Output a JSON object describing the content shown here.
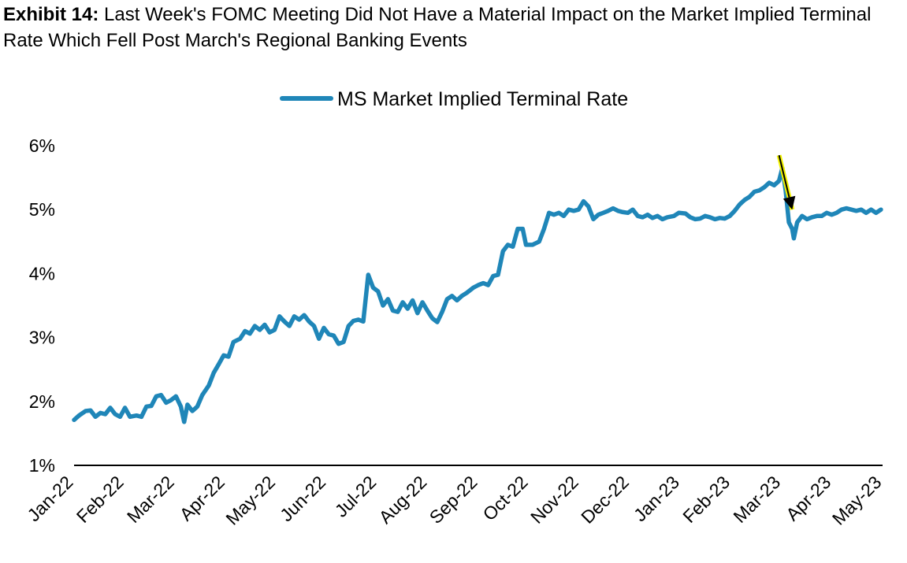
{
  "title": {
    "lead": "Exhibit 14:",
    "text": "Last Week's FOMC Meeting Did Not Have a Material Impact on the Market Implied Terminal Rate Which Fell Post March's Regional Banking Events"
  },
  "colors": {
    "series": "#1f86b8",
    "arrow_highlight": "#f2f200",
    "arrow": "#000000",
    "axis": "#000000"
  },
  "chart_data": {
    "type": "line",
    "legend_position": "top-center",
    "grid": false,
    "x_ticks": [
      "Jan-22",
      "Feb-22",
      "Mar-22",
      "Apr-22",
      "May-22",
      "Jun-22",
      "Jul-22",
      "Aug-22",
      "Sep-22",
      "Oct-22",
      "Nov-22",
      "Dec-22",
      "Jan-23",
      "Feb-23",
      "Mar-23",
      "Apr-23",
      "May-23"
    ],
    "y_ticks": [
      "6%",
      "5%",
      "4%",
      "3%",
      "2%",
      "1%"
    ],
    "ylim": [
      1,
      6
    ],
    "xlim": [
      "2022-01-01",
      "2023-05-08"
    ],
    "annotation": {
      "type": "arrow",
      "from": [
        "2023-03-06",
        5.85
      ],
      "to": [
        "2023-03-14",
        5.0
      ]
    },
    "series": [
      {
        "name": "MS Market Implied Terminal Rate",
        "points": [
          [
            "2022-01-01",
            1.71
          ],
          [
            "2022-01-04",
            1.78
          ],
          [
            "2022-01-08",
            1.85
          ],
          [
            "2022-01-11",
            1.86
          ],
          [
            "2022-01-14",
            1.76
          ],
          [
            "2022-01-17",
            1.82
          ],
          [
            "2022-01-20",
            1.8
          ],
          [
            "2022-01-23",
            1.9
          ],
          [
            "2022-01-26",
            1.8
          ],
          [
            "2022-01-29",
            1.76
          ],
          [
            "2022-02-01",
            1.9
          ],
          [
            "2022-02-04",
            1.76
          ],
          [
            "2022-02-08",
            1.78
          ],
          [
            "2022-02-11",
            1.76
          ],
          [
            "2022-02-14",
            1.92
          ],
          [
            "2022-02-17",
            1.93
          ],
          [
            "2022-02-20",
            2.08
          ],
          [
            "2022-02-23",
            2.1
          ],
          [
            "2022-02-26",
            1.98
          ],
          [
            "2022-03-01",
            2.02
          ],
          [
            "2022-03-04",
            2.08
          ],
          [
            "2022-03-07",
            1.92
          ],
          [
            "2022-03-09",
            1.68
          ],
          [
            "2022-03-11",
            1.95
          ],
          [
            "2022-03-14",
            1.85
          ],
          [
            "2022-03-17",
            1.92
          ],
          [
            "2022-03-20",
            2.1
          ],
          [
            "2022-03-24",
            2.25
          ],
          [
            "2022-03-27",
            2.45
          ],
          [
            "2022-03-30",
            2.58
          ],
          [
            "2022-04-02",
            2.72
          ],
          [
            "2022-04-05",
            2.7
          ],
          [
            "2022-04-08",
            2.93
          ],
          [
            "2022-04-12",
            2.98
          ],
          [
            "2022-04-15",
            3.1
          ],
          [
            "2022-04-18",
            3.06
          ],
          [
            "2022-04-21",
            3.18
          ],
          [
            "2022-04-24",
            3.12
          ],
          [
            "2022-04-27",
            3.2
          ],
          [
            "2022-04-30",
            3.08
          ],
          [
            "2022-05-03",
            3.12
          ],
          [
            "2022-05-06",
            3.33
          ],
          [
            "2022-05-09",
            3.25
          ],
          [
            "2022-05-12",
            3.18
          ],
          [
            "2022-05-15",
            3.33
          ],
          [
            "2022-05-18",
            3.28
          ],
          [
            "2022-05-21",
            3.35
          ],
          [
            "2022-05-24",
            3.25
          ],
          [
            "2022-05-27",
            3.18
          ],
          [
            "2022-05-30",
            2.98
          ],
          [
            "2022-06-02",
            3.15
          ],
          [
            "2022-06-05",
            3.05
          ],
          [
            "2022-06-08",
            3.03
          ],
          [
            "2022-06-11",
            2.9
          ],
          [
            "2022-06-14",
            2.93
          ],
          [
            "2022-06-17",
            3.18
          ],
          [
            "2022-06-20",
            3.26
          ],
          [
            "2022-06-23",
            3.28
          ],
          [
            "2022-06-26",
            3.25
          ],
          [
            "2022-06-29",
            3.98
          ],
          [
            "2022-07-02",
            3.78
          ],
          [
            "2022-07-05",
            3.72
          ],
          [
            "2022-07-08",
            3.5
          ],
          [
            "2022-07-11",
            3.6
          ],
          [
            "2022-07-14",
            3.42
          ],
          [
            "2022-07-17",
            3.4
          ],
          [
            "2022-07-20",
            3.55
          ],
          [
            "2022-07-23",
            3.45
          ],
          [
            "2022-07-26",
            3.58
          ],
          [
            "2022-07-29",
            3.38
          ],
          [
            "2022-08-01",
            3.55
          ],
          [
            "2022-08-04",
            3.42
          ],
          [
            "2022-08-07",
            3.3
          ],
          [
            "2022-08-10",
            3.24
          ],
          [
            "2022-08-13",
            3.4
          ],
          [
            "2022-08-16",
            3.6
          ],
          [
            "2022-08-19",
            3.65
          ],
          [
            "2022-08-22",
            3.58
          ],
          [
            "2022-08-25",
            3.65
          ],
          [
            "2022-08-28",
            3.7
          ],
          [
            "2022-09-01",
            3.78
          ],
          [
            "2022-09-04",
            3.82
          ],
          [
            "2022-09-07",
            3.85
          ],
          [
            "2022-09-10",
            3.82
          ],
          [
            "2022-09-13",
            3.96
          ],
          [
            "2022-09-16",
            3.98
          ],
          [
            "2022-09-19",
            4.35
          ],
          [
            "2022-09-22",
            4.45
          ],
          [
            "2022-09-25",
            4.42
          ],
          [
            "2022-09-28",
            4.7
          ],
          [
            "2022-10-01",
            4.7
          ],
          [
            "2022-10-03",
            4.45
          ],
          [
            "2022-10-07",
            4.45
          ],
          [
            "2022-10-11",
            4.5
          ],
          [
            "2022-10-14",
            4.7
          ],
          [
            "2022-10-17",
            4.95
          ],
          [
            "2022-10-20",
            4.92
          ],
          [
            "2022-10-23",
            4.95
          ],
          [
            "2022-10-26",
            4.9
          ],
          [
            "2022-10-29",
            5.0
          ],
          [
            "2022-11-01",
            4.98
          ],
          [
            "2022-11-04",
            5.0
          ],
          [
            "2022-11-07",
            5.13
          ],
          [
            "2022-11-10",
            5.05
          ],
          [
            "2022-11-13",
            4.85
          ],
          [
            "2022-11-16",
            4.92
          ],
          [
            "2022-11-19",
            4.95
          ],
          [
            "2022-11-22",
            4.98
          ],
          [
            "2022-11-25",
            5.02
          ],
          [
            "2022-11-28",
            4.98
          ],
          [
            "2022-12-01",
            4.96
          ],
          [
            "2022-12-04",
            4.95
          ],
          [
            "2022-12-07",
            5.0
          ],
          [
            "2022-12-10",
            4.9
          ],
          [
            "2022-12-13",
            4.88
          ],
          [
            "2022-12-16",
            4.92
          ],
          [
            "2022-12-19",
            4.87
          ],
          [
            "2022-12-22",
            4.9
          ],
          [
            "2022-12-25",
            4.85
          ],
          [
            "2022-12-28",
            4.88
          ],
          [
            "2023-01-01",
            4.9
          ],
          [
            "2023-01-04",
            4.95
          ],
          [
            "2023-01-08",
            4.94
          ],
          [
            "2023-01-11",
            4.88
          ],
          [
            "2023-01-14",
            4.85
          ],
          [
            "2023-01-17",
            4.86
          ],
          [
            "2023-01-20",
            4.9
          ],
          [
            "2023-01-23",
            4.88
          ],
          [
            "2023-01-26",
            4.85
          ],
          [
            "2023-01-29",
            4.87
          ],
          [
            "2023-02-01",
            4.86
          ],
          [
            "2023-02-04",
            4.9
          ],
          [
            "2023-02-07",
            4.98
          ],
          [
            "2023-02-10",
            5.08
          ],
          [
            "2023-02-13",
            5.15
          ],
          [
            "2023-02-16",
            5.2
          ],
          [
            "2023-02-19",
            5.28
          ],
          [
            "2023-02-22",
            5.3
          ],
          [
            "2023-02-25",
            5.35
          ],
          [
            "2023-02-28",
            5.42
          ],
          [
            "2023-03-03",
            5.38
          ],
          [
            "2023-03-06",
            5.45
          ],
          [
            "2023-03-08",
            5.65
          ],
          [
            "2023-03-10",
            5.3
          ],
          [
            "2023-03-12",
            4.8
          ],
          [
            "2023-03-14",
            4.7
          ],
          [
            "2023-03-15",
            4.55
          ],
          [
            "2023-03-17",
            4.8
          ],
          [
            "2023-03-20",
            4.9
          ],
          [
            "2023-03-23",
            4.85
          ],
          [
            "2023-03-26",
            4.88
          ],
          [
            "2023-03-29",
            4.9
          ],
          [
            "2023-04-01",
            4.9
          ],
          [
            "2023-04-04",
            4.95
          ],
          [
            "2023-04-07",
            4.92
          ],
          [
            "2023-04-10",
            4.95
          ],
          [
            "2023-04-13",
            5.0
          ],
          [
            "2023-04-16",
            5.02
          ],
          [
            "2023-04-19",
            5.0
          ],
          [
            "2023-04-22",
            4.98
          ],
          [
            "2023-04-25",
            5.0
          ],
          [
            "2023-04-28",
            4.95
          ],
          [
            "2023-05-01",
            5.0
          ],
          [
            "2023-05-04",
            4.95
          ],
          [
            "2023-05-07",
            5.0
          ]
        ]
      }
    ]
  }
}
